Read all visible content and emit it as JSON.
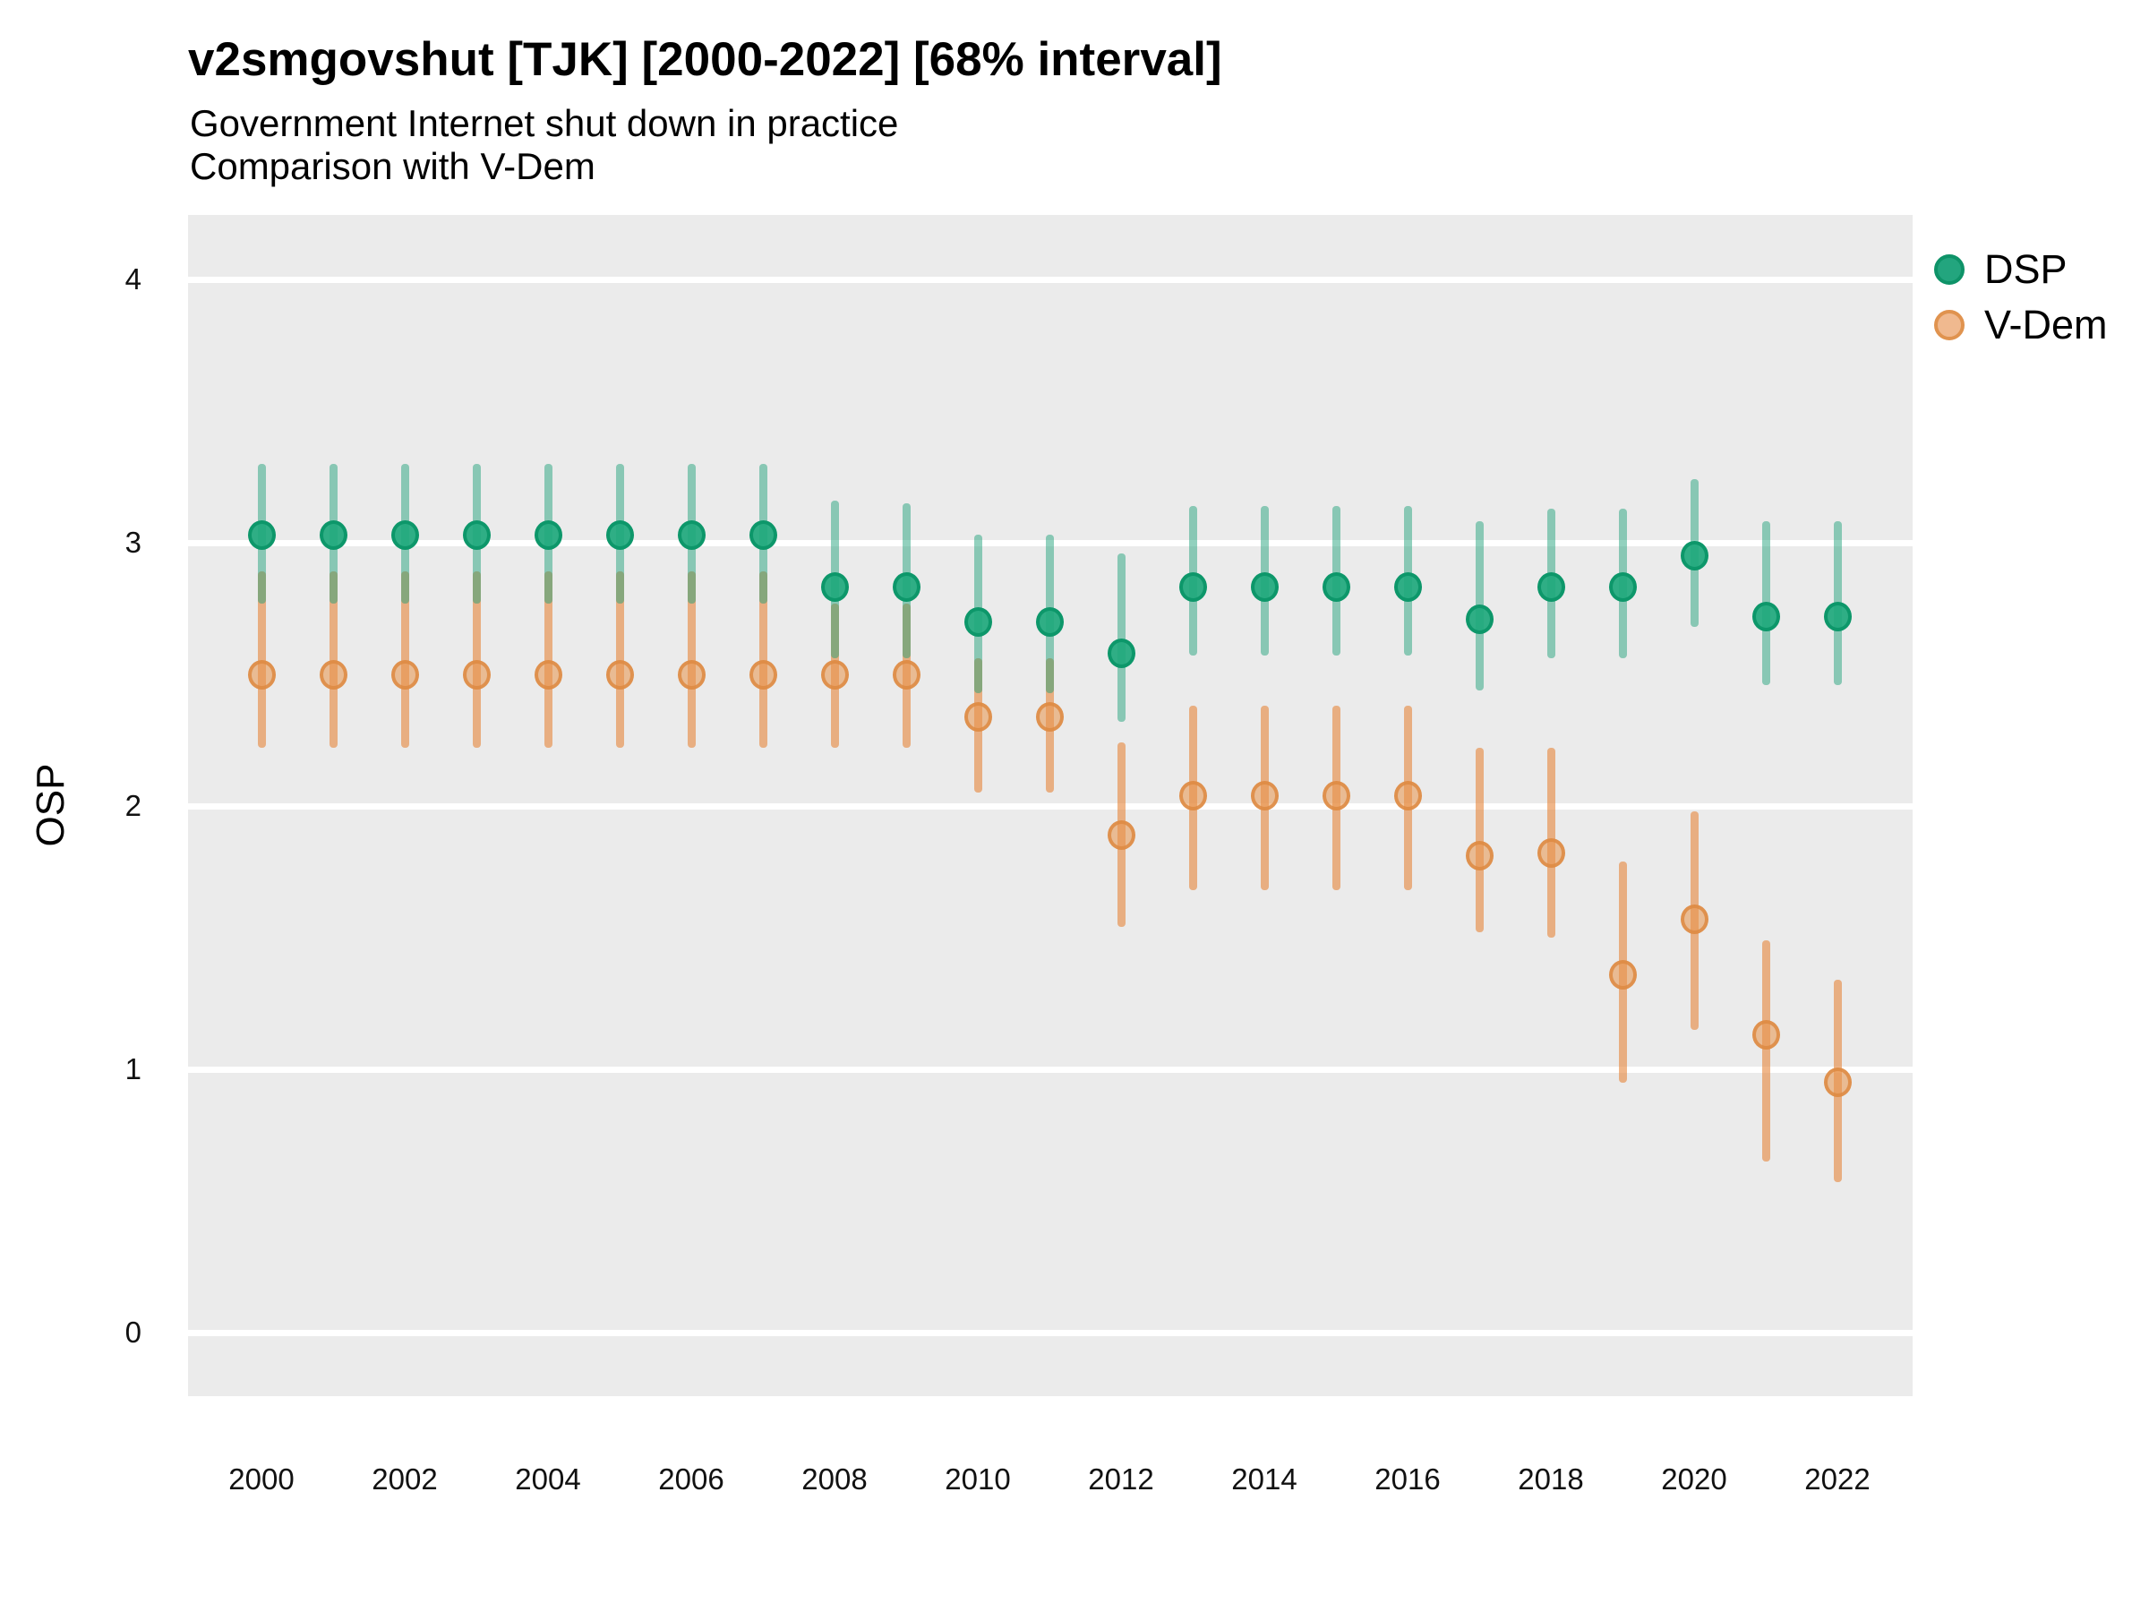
{
  "header": {
    "title": "v2smgovshut [TJK] [2000-2022] [68% interval]",
    "subtitle1": "Government Internet shut down in practice",
    "subtitle2": "Comparison with V-Dem"
  },
  "axes": {
    "y_label": "OSP",
    "y_ticks": [
      4,
      3,
      2,
      1,
      0
    ],
    "x_ticks": [
      2000,
      2002,
      2004,
      2006,
      2008,
      2010,
      2012,
      2014,
      2016,
      2018,
      2020,
      2022
    ]
  },
  "legend": {
    "items": [
      {
        "label": "DSP",
        "color": "#1B9E77"
      },
      {
        "label": "V-Dem",
        "color": "#E6853B"
      }
    ],
    "position": "right-top"
  },
  "colors": {
    "panel_background": "#EBEBEB",
    "gridline": "#FFFFFF",
    "dsp": "#1B9E77",
    "vdem": "#E6853B"
  },
  "chart_data": {
    "type": "scatter",
    "title": "v2smgovshut [TJK] [2000-2022] [68% interval]",
    "subtitle": "Government Internet shut down in practice — Comparison with V-Dem",
    "interval_level": "68%",
    "xlabel": "",
    "ylabel": "OSP",
    "ylim": [
      -0.25,
      4.25
    ],
    "grid": "white horizontal gridlines at integers on grey panel",
    "legend_position": "right-top",
    "x": [
      2000,
      2001,
      2002,
      2003,
      2004,
      2005,
      2006,
      2007,
      2008,
      2009,
      2010,
      2011,
      2012,
      2013,
      2014,
      2015,
      2016,
      2017,
      2018,
      2019,
      2020,
      2021,
      2022
    ],
    "series": [
      {
        "name": "DSP",
        "color": "#1B9E77",
        "y": [
          3.03,
          3.03,
          3.03,
          3.03,
          3.03,
          3.03,
          3.03,
          3.03,
          2.83,
          2.83,
          2.7,
          2.7,
          2.58,
          2.83,
          2.83,
          2.83,
          2.83,
          2.71,
          2.83,
          2.83,
          2.95,
          2.72,
          2.72
        ],
        "lo": [
          2.77,
          2.77,
          2.77,
          2.77,
          2.77,
          2.77,
          2.77,
          2.77,
          2.56,
          2.56,
          2.43,
          2.43,
          2.32,
          2.57,
          2.57,
          2.57,
          2.57,
          2.44,
          2.56,
          2.56,
          2.68,
          2.46,
          2.46
        ],
        "hi": [
          3.3,
          3.3,
          3.3,
          3.3,
          3.3,
          3.3,
          3.3,
          3.3,
          3.16,
          3.15,
          3.03,
          3.03,
          2.96,
          3.14,
          3.14,
          3.14,
          3.14,
          3.08,
          3.13,
          3.13,
          3.24,
          3.08,
          3.08
        ]
      },
      {
        "name": "V-Dem",
        "color": "#E6853B",
        "y": [
          2.5,
          2.5,
          2.5,
          2.5,
          2.5,
          2.5,
          2.5,
          2.5,
          2.5,
          2.5,
          2.34,
          2.34,
          1.89,
          2.04,
          2.04,
          2.04,
          2.04,
          1.81,
          1.82,
          1.36,
          1.57,
          1.13,
          0.95
        ],
        "lo": [
          2.22,
          2.22,
          2.22,
          2.22,
          2.22,
          2.22,
          2.22,
          2.22,
          2.22,
          2.22,
          2.05,
          2.05,
          1.54,
          1.68,
          1.68,
          1.68,
          1.68,
          1.52,
          1.5,
          0.95,
          1.15,
          0.65,
          0.57
        ],
        "hi": [
          2.89,
          2.89,
          2.89,
          2.89,
          2.89,
          2.89,
          2.89,
          2.89,
          2.77,
          2.77,
          2.56,
          2.56,
          2.24,
          2.38,
          2.38,
          2.38,
          2.38,
          2.22,
          2.22,
          1.79,
          1.98,
          1.49,
          1.34
        ]
      }
    ]
  }
}
